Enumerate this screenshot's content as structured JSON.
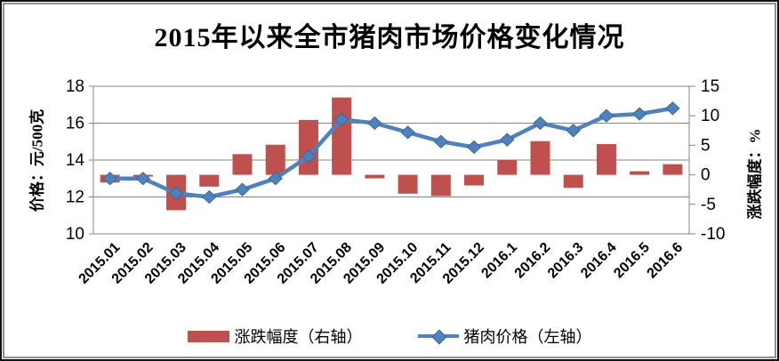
{
  "title": "2015年以来全市猪肉市场价格变化情况",
  "legend": {
    "bar_label": "涨跌幅度（右轴）",
    "line_label": "猪肉价格（左轴）"
  },
  "colors": {
    "bar": "#C0504D",
    "line": "#4F81BD",
    "marker_edge": "#3A669C",
    "grid": "#848484",
    "axis": "#848484",
    "text": "#000000"
  },
  "chart_data": {
    "type": "combo_bar_line",
    "title": "2015年以来全市猪肉市场价格变化情况",
    "categories": [
      "2015.01",
      "2015.02",
      "2015.03",
      "2015.04",
      "2015.05",
      "2015.06",
      "2015.07",
      "2015.08",
      "2015.09",
      "2015.10",
      "2015.11",
      "2015.12",
      "2016.1",
      "2016.2",
      "2016.3",
      "2016.4",
      "2016.5",
      "2016.6"
    ],
    "left_axis": {
      "label": "价格：元/500克",
      "min": 10,
      "max": 18,
      "ticks": [
        18,
        16,
        14,
        12,
        10
      ]
    },
    "right_axis": {
      "label": "涨跌幅度：%",
      "min": -10,
      "max": 15,
      "ticks": [
        15,
        10,
        5,
        0,
        -5,
        -10
      ]
    },
    "series": [
      {
        "name": "涨跌幅度（右轴）",
        "type": "bar",
        "axis": "right",
        "values": [
          -1.3,
          -0.1,
          -6.0,
          -2.0,
          3.5,
          5.1,
          9.3,
          13.1,
          -0.6,
          -3.2,
          -3.6,
          -1.8,
          2.5,
          5.7,
          -2.2,
          5.2,
          0.6,
          1.8
        ]
      },
      {
        "name": "猪肉价格（左轴）",
        "type": "line",
        "axis": "left",
        "values": [
          13.0,
          13.0,
          12.2,
          12.0,
          12.4,
          13.0,
          14.2,
          16.2,
          16.0,
          15.5,
          15.0,
          14.7,
          15.1,
          16.0,
          15.6,
          16.4,
          16.5,
          16.8
        ]
      }
    ],
    "grid": true,
    "legend_position": "bottom"
  }
}
